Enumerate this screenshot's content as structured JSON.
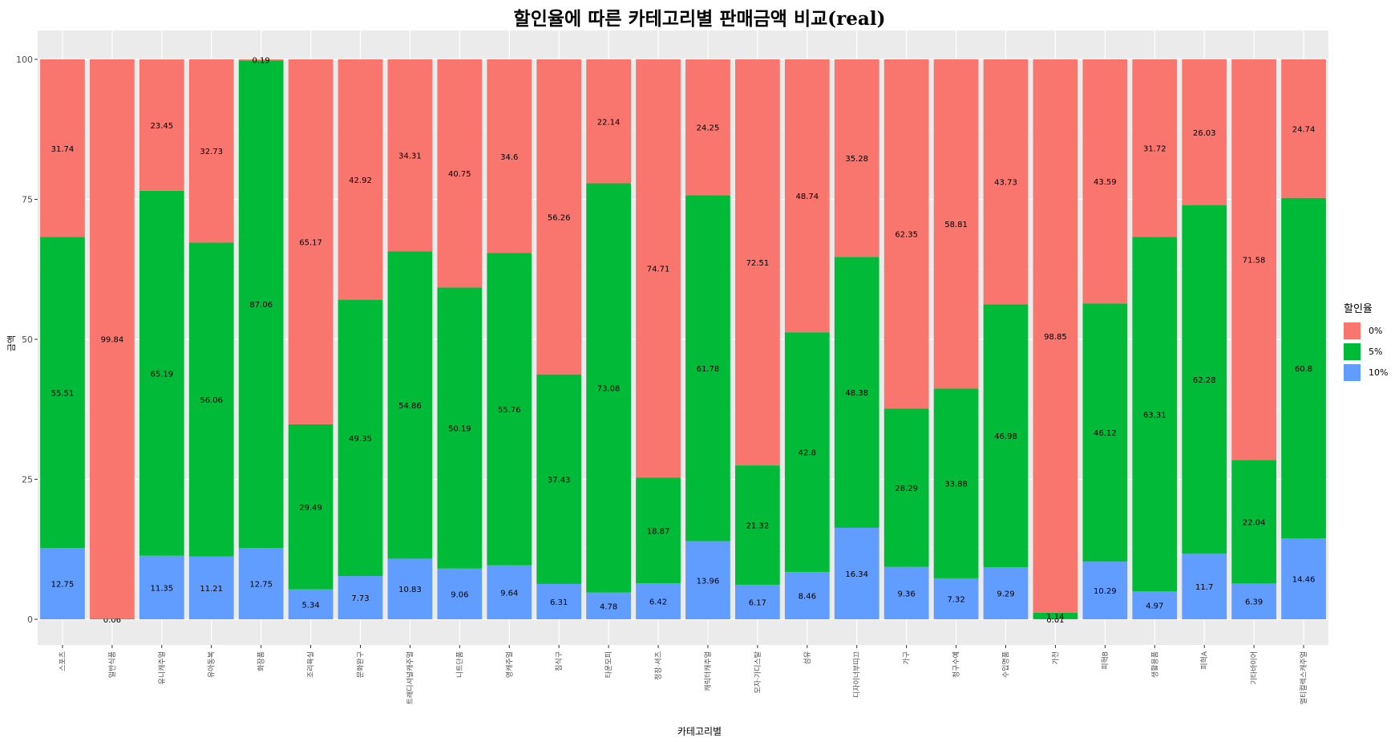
{
  "chart_data": {
    "type": "bar",
    "stacked": true,
    "title": "할인율에 따른 카테고리별 판매금액 비교(real)",
    "xlabel": "카테고리별",
    "ylabel": "금액",
    "ylim": [
      0,
      100
    ],
    "yticks": [
      0,
      25,
      50,
      75,
      100
    ],
    "grid": true,
    "legend": {
      "title": "할인율",
      "position": "right"
    },
    "categories": [
      "스포츠",
      "일반식품",
      "유니캐주얼",
      "유아동복",
      "화장품",
      "조리욕실",
      "문화완구",
      "트래디셔널캐주얼",
      "니트단품",
      "영캐주얼",
      "침식구",
      "타운모피",
      "정장·셔츠",
      "캐릭터캐주얼",
      "모자·가디스탈",
      "섬유",
      "디자이너부띠끄",
      "가구",
      "청구수예",
      "수입명품",
      "가전",
      "피혁B",
      "생활용품",
      "피혁A",
      "기타바이어",
      "멀티컬렉스캐주얼"
    ],
    "series": [
      {
        "name": "0%",
        "color": "#F8766D",
        "values": [
          31.74,
          99.84,
          23.45,
          32.73,
          0.19,
          65.17,
          42.92,
          34.31,
          40.75,
          34.6,
          56.26,
          22.14,
          74.71,
          24.25,
          72.51,
          48.74,
          35.28,
          62.35,
          58.81,
          43.73,
          98.85,
          43.59,
          31.72,
          26.03,
          71.58,
          24.74
        ]
      },
      {
        "name": "5%",
        "color": "#00BA38",
        "values": [
          55.51,
          0.1,
          65.19,
          56.06,
          87.06,
          29.49,
          49.35,
          54.86,
          50.19,
          55.76,
          37.43,
          73.08,
          18.87,
          61.78,
          21.32,
          42.8,
          48.38,
          28.29,
          33.88,
          46.98,
          1.14,
          46.12,
          63.31,
          62.28,
          22.04,
          60.8
        ]
      },
      {
        "name": "10%",
        "color": "#619CFF",
        "values": [
          12.75,
          0.06,
          11.35,
          11.21,
          12.75,
          5.34,
          7.73,
          10.83,
          9.06,
          9.64,
          6.31,
          4.78,
          6.42,
          13.96,
          6.17,
          8.46,
          16.34,
          9.36,
          7.32,
          9.29,
          0.01,
          10.29,
          4.97,
          11.7,
          6.39,
          14.46
        ]
      }
    ],
    "labels": {
      "0%": [
        "31.74",
        "99.84",
        "23.45",
        "32.73",
        "0.19",
        "65.17",
        "42.92",
        "34.31",
        "40.75",
        "34.6",
        "56.26",
        "22.14",
        "74.71",
        "24.25",
        "72.51",
        "48.74",
        "35.28",
        "62.35",
        "58.81",
        "43.73",
        "98.85",
        "43.59",
        "31.72",
        "26.03",
        "71.58",
        "24.74"
      ],
      "5%": [
        "55.51",
        "",
        "65.19",
        "56.06",
        "87.06",
        "29.49",
        "49.35",
        "54.86",
        "50.19",
        "55.76",
        "37.43",
        "73.08",
        "18.87",
        "61.78",
        "21.32",
        "42.8",
        "48.38",
        "28.29",
        "33.88",
        "46.98",
        "1.14",
        "46.12",
        "63.31",
        "62.28",
        "22.04",
        "60.8"
      ],
      "10%": [
        "12.75",
        "0.06",
        "11.35",
        "11.21",
        "12.75",
        "5.34",
        "7.73",
        "10.83",
        "9.06",
        "9.64",
        "6.31",
        "4.78",
        "6.42",
        "13.96",
        "6.17",
        "8.46",
        "16.34",
        "9.36",
        "7.32",
        "9.29",
        "0.01",
        "10.29",
        "4.97",
        "11.7",
        "6.39",
        "14.46"
      ]
    }
  }
}
